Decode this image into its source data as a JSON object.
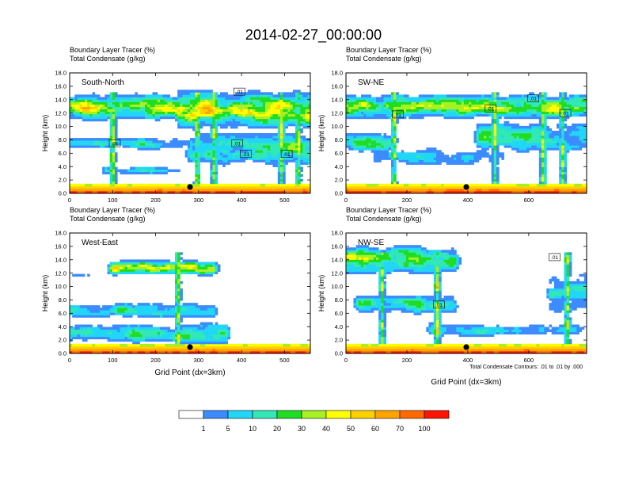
{
  "main_title": "2014-02-27_00:00:00",
  "footnote": "Total Condensate Contours: .01 to .01 by .000",
  "colors": {
    "palette": [
      "#ffffff",
      "#3c8cff",
      "#21d6f7",
      "#31e8b6",
      "#21dd21",
      "#a6f023",
      "#ffff00",
      "#fdd000",
      "#ffa300",
      "#ff6a00",
      "#ff1500"
    ]
  },
  "colorbar": {
    "labels": [
      "1",
      "5",
      "10",
      "20",
      "30",
      "40",
      "50",
      "60",
      "70",
      "100"
    ]
  },
  "chart_data": [
    {
      "type": "heatmap",
      "id": "south-north",
      "panel_label": "South-North",
      "title_lines": [
        "Boundary Layer Tracer    (%)",
        "Total Condensate    (g/kg)"
      ],
      "ylabel": "Height (km)",
      "xlabel": "",
      "xlim": [
        0,
        560
      ],
      "ylim": [
        0,
        18
      ],
      "xticks": [
        0,
        100,
        200,
        300,
        400,
        500
      ],
      "yticks": [
        0,
        2,
        4,
        6,
        8,
        10,
        12,
        14,
        16,
        18
      ],
      "ytick_labels": [
        "0.0",
        "2.0",
        "4.0",
        "6.0",
        "8.0",
        "10.0",
        "12.0",
        "14.0",
        "16.0",
        "18.0"
      ],
      "marker_x": 280,
      "contour_labels": [
        ".01",
        ".01",
        ".01",
        ".01",
        ".01"
      ],
      "contour_label_pos": [
        [
          105,
          7.5
        ],
        [
          390,
          7.5
        ],
        [
          410,
          5.9
        ],
        [
          505,
          5.9
        ],
        [
          395,
          15.2
        ]
      ]
    },
    {
      "type": "heatmap",
      "id": "sw-ne",
      "panel_label": "SW-NE",
      "title_lines": [
        "Boundary Layer Tracer    (%)",
        "Total Condensate    (g/kg)"
      ],
      "ylabel": "Height (km)",
      "xlabel": "",
      "xlim": [
        0,
        790
      ],
      "ylim": [
        0,
        18
      ],
      "xticks": [
        0,
        200,
        400,
        600
      ],
      "yticks": [
        0,
        2,
        4,
        6,
        8,
        10,
        12,
        14,
        16,
        18
      ],
      "ytick_labels": [
        "0.0",
        "2.0",
        "4.0",
        "6.0",
        "8.0",
        "10.0",
        "12.0",
        "14.0",
        "16.0",
        "18.0"
      ],
      "marker_x": 395,
      "contour_labels": [
        ".01",
        ".01",
        ".01",
        ".01"
      ],
      "contour_label_pos": [
        [
          170,
          11.8
        ],
        [
          475,
          12.7
        ],
        [
          615,
          14.2
        ],
        [
          720,
          12.0
        ]
      ]
    },
    {
      "type": "heatmap",
      "id": "west-east",
      "panel_label": "West-East",
      "title_lines": [
        "Boundary Layer Tracer    (%)",
        "Total Condensate    (g/kg)"
      ],
      "ylabel": "Height (km)",
      "xlabel": "Grid Point (dx=3km)",
      "xlim": [
        0,
        560
      ],
      "ylim": [
        0,
        18
      ],
      "xticks": [
        0,
        100,
        200,
        300,
        400,
        500
      ],
      "yticks": [
        0,
        2,
        4,
        6,
        8,
        10,
        12,
        14,
        16,
        18
      ],
      "ytick_labels": [
        "0.0",
        "2.0",
        "4.0",
        "6.0",
        "8.0",
        "10.0",
        "12.0",
        "14.0",
        "16.0",
        "18.0"
      ],
      "marker_x": 280,
      "contour_labels": [],
      "contour_label_pos": []
    },
    {
      "type": "heatmap",
      "id": "nw-se",
      "panel_label": "NW-SE",
      "title_lines": [
        "Boundary Layer Tracer    (%)",
        "Total Condensate    (g/kg)"
      ],
      "ylabel": "Height (km)",
      "xlabel": "Grid Point (dx=3km)",
      "xlim": [
        0,
        790
      ],
      "ylim": [
        0,
        18
      ],
      "xticks": [
        0,
        200,
        400,
        600
      ],
      "yticks": [
        0,
        2,
        4,
        6,
        8,
        10,
        12,
        14,
        16,
        18
      ],
      "ytick_labels": [
        "0.0",
        "2.0",
        "4.0",
        "6.0",
        "8.0",
        "10.0",
        "12.0",
        "14.0",
        "16.0",
        "18.0"
      ],
      "marker_x": 395,
      "contour_labels": [
        ".01",
        ".01"
      ],
      "contour_label_pos": [
        [
          305,
          7.3
        ],
        [
          685,
          14.4
        ]
      ]
    }
  ]
}
